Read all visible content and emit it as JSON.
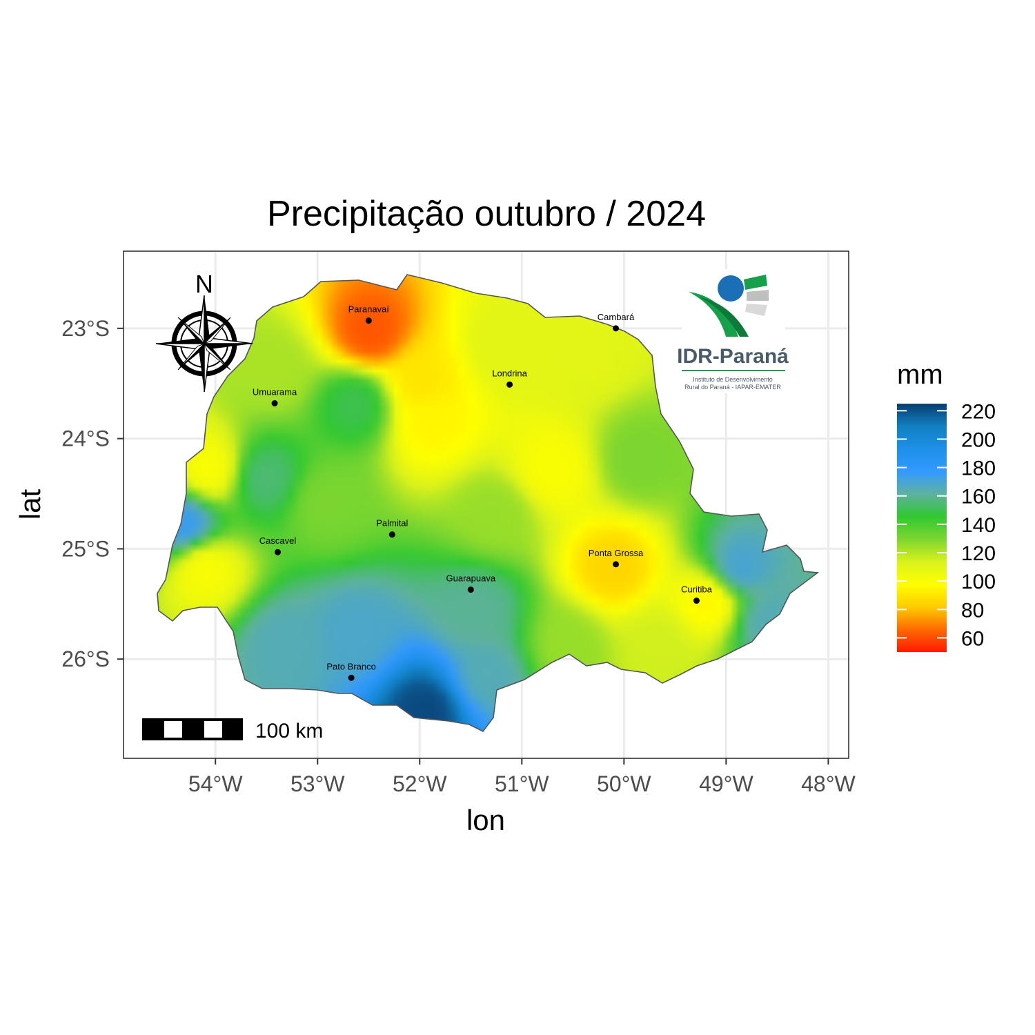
{
  "title": "Precipitação outubro / 2024",
  "axes": {
    "x_title": "lon",
    "y_title": "lat",
    "x_ticks": [
      "54°W",
      "53°W",
      "52°W",
      "51°W",
      "50°W",
      "49°W",
      "48°W"
    ],
    "y_ticks": [
      "23°S",
      "24°S",
      "25°S",
      "26°S"
    ]
  },
  "legend": {
    "title": "mm",
    "labels": [
      "220",
      "200",
      "180",
      "160",
      "140",
      "120",
      "100",
      "80",
      "60"
    ],
    "colors": [
      "#ff1a00",
      "#ff6a00",
      "#ffcc00",
      "#ffff00",
      "#d9f21c",
      "#7dd630",
      "#32c832",
      "#5fb1a0",
      "#3399ff",
      "#1e90e8",
      "#1080c0",
      "#0a3d70"
    ]
  },
  "chart_data": {
    "type": "heatmap",
    "title": "Precipitação outubro / 2024",
    "xlabel": "lon",
    "ylabel": "lat",
    "xlim": [
      -54.9,
      -47.8
    ],
    "ylim": [
      -26.9,
      -22.3
    ],
    "value_range": [
      50,
      225
    ],
    "units": "mm",
    "cities": [
      {
        "name": "Paranavaí",
        "lon": -52.5,
        "lat": -22.93
      },
      {
        "name": "Cambará",
        "lon": -50.08,
        "lat": -23.0
      },
      {
        "name": "Londrina",
        "lon": -51.12,
        "lat": -23.51
      },
      {
        "name": "Umuarama",
        "lon": -53.42,
        "lat": -23.68
      },
      {
        "name": "Palmital",
        "lon": -52.27,
        "lat": -24.87
      },
      {
        "name": "Cascavel",
        "lon": -53.39,
        "lat": -25.03
      },
      {
        "name": "Ponta Grossa",
        "lon": -50.08,
        "lat": -25.14
      },
      {
        "name": "Guarapuava",
        "lon": -51.5,
        "lat": -25.37
      },
      {
        "name": "Curitiba",
        "lon": -49.29,
        "lat": -25.47
      },
      {
        "name": "Pato Branco",
        "lon": -52.67,
        "lat": -26.17
      }
    ],
    "centers": [
      {
        "lon": -52.45,
        "lat": -23.05,
        "value": 62
      },
      {
        "lon": -51.95,
        "lat": -23.5,
        "value": 90
      },
      {
        "lon": -51.85,
        "lat": -23.85,
        "value": 95
      },
      {
        "lon": -52.6,
        "lat": -23.7,
        "value": 150
      },
      {
        "lon": -53.5,
        "lat": -24.38,
        "value": 155
      },
      {
        "lon": -54.05,
        "lat": -24.3,
        "value": 100
      },
      {
        "lon": -54.3,
        "lat": -24.8,
        "value": 175
      },
      {
        "lon": -54.1,
        "lat": -25.2,
        "value": 100
      },
      {
        "lon": -53.3,
        "lat": -25.9,
        "value": 165
      },
      {
        "lon": -52.6,
        "lat": -25.8,
        "value": 168
      },
      {
        "lon": -51.9,
        "lat": -26.5,
        "value": 222
      },
      {
        "lon": -51.4,
        "lat": -25.6,
        "value": 160
      },
      {
        "lon": -51.3,
        "lat": -26.2,
        "value": 165
      },
      {
        "lon": -50.65,
        "lat": -24.3,
        "value": 100
      },
      {
        "lon": -50.05,
        "lat": -25.2,
        "value": 85
      },
      {
        "lon": -49.1,
        "lat": -25.5,
        "value": 95
      },
      {
        "lon": -48.8,
        "lat": -25.2,
        "value": 170
      },
      {
        "lon": -48.5,
        "lat": -25.7,
        "value": 165
      },
      {
        "lon": -49.8,
        "lat": -24.2,
        "value": 130
      },
      {
        "lon": -50.3,
        "lat": -23.2,
        "value": 110
      },
      {
        "lon": -51.1,
        "lat": -23.2,
        "value": 110
      },
      {
        "lon": -53.4,
        "lat": -23.4,
        "value": 122
      },
      {
        "lon": -52.9,
        "lat": -24.6,
        "value": 130
      },
      {
        "lon": -51.2,
        "lat": -24.7,
        "value": 125
      },
      {
        "lon": -50.5,
        "lat": -25.9,
        "value": 125
      },
      {
        "lon": -49.6,
        "lat": -25.9,
        "value": 115
      }
    ]
  },
  "decorations": {
    "north_label": "N",
    "scale_bar_label": "100 km",
    "logo_name": "IDR-Paraná",
    "logo_subtitle_1": "Instituto de Desenvolvimento",
    "logo_subtitle_2": "Rural do Paraná - IAPAR-EMATER"
  }
}
